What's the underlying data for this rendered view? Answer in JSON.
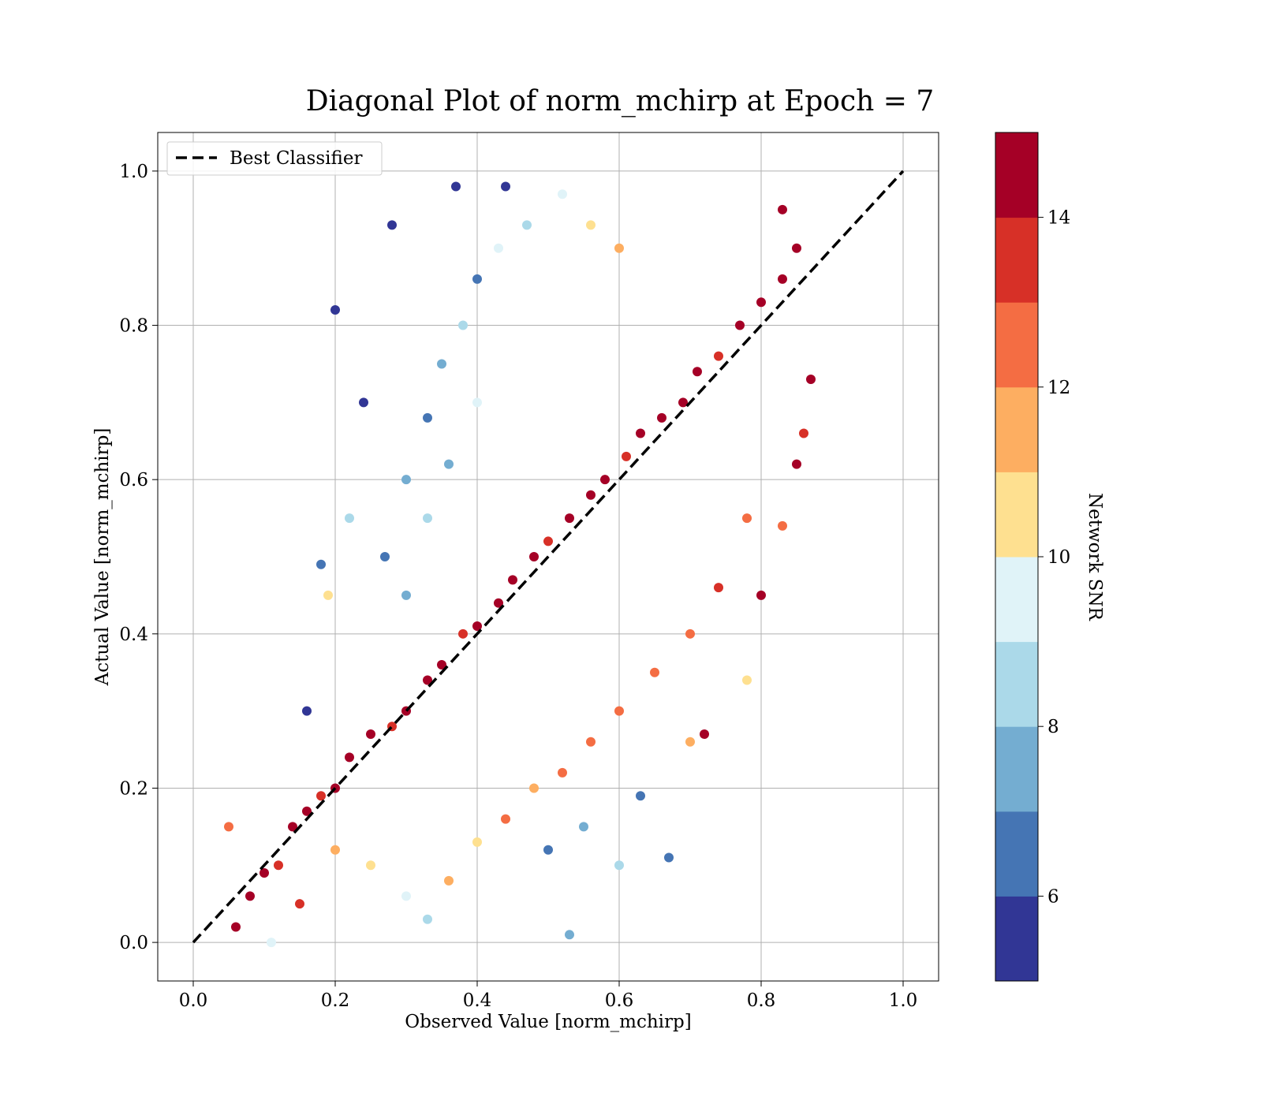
{
  "chart_data": {
    "type": "scatter",
    "title": "Diagonal Plot of norm_mchirp at Epoch = 7",
    "xlabel": "Observed Value [norm_mchirp]",
    "ylabel": "Actual Value [norm_mchirp]",
    "xlim": [
      -0.05,
      1.05
    ],
    "ylim": [
      -0.05,
      1.05
    ],
    "xticks": [
      "0.0",
      "0.2",
      "0.4",
      "0.6",
      "0.8",
      "1.0"
    ],
    "yticks": [
      "0.0",
      "0.2",
      "0.4",
      "0.6",
      "0.8",
      "1.0"
    ],
    "grid": true,
    "legend": {
      "position": "top-left",
      "entries": [
        {
          "label": "Best Classifier",
          "style": "black dashed line"
        }
      ]
    },
    "reference_line": {
      "x": [
        0.0,
        1.0
      ],
      "y": [
        0.0,
        1.0
      ],
      "color": "#000000"
    },
    "colorbar": {
      "label": "Network SNR",
      "range": [
        5,
        15
      ],
      "ticks": [
        "6",
        "8",
        "10",
        "12",
        "14"
      ],
      "bins": 10,
      "colors": [
        "#313695",
        "#4575b4",
        "#74add1",
        "#abd9e9",
        "#e0f3f8",
        "#fee090",
        "#fdae61",
        "#f46d43",
        "#d73027",
        "#a50026"
      ]
    },
    "series": [
      {
        "note": "representative sample of the scatter points (x, y, snr)",
        "points": [
          [
            0.06,
            0.02,
            14.5
          ],
          [
            0.08,
            0.06,
            14.6
          ],
          [
            0.1,
            0.09,
            14.2
          ],
          [
            0.12,
            0.1,
            13.5
          ],
          [
            0.14,
            0.15,
            14.8
          ],
          [
            0.16,
            0.17,
            14.4
          ],
          [
            0.18,
            0.19,
            13.2
          ],
          [
            0.2,
            0.2,
            14.9
          ],
          [
            0.22,
            0.24,
            14.3
          ],
          [
            0.25,
            0.27,
            14.7
          ],
          [
            0.28,
            0.28,
            13.8
          ],
          [
            0.3,
            0.3,
            14.6
          ],
          [
            0.33,
            0.34,
            14.1
          ],
          [
            0.35,
            0.36,
            14.9
          ],
          [
            0.38,
            0.4,
            13.4
          ],
          [
            0.4,
            0.41,
            14.5
          ],
          [
            0.43,
            0.44,
            14.8
          ],
          [
            0.45,
            0.47,
            14.2
          ],
          [
            0.48,
            0.5,
            14.7
          ],
          [
            0.5,
            0.52,
            13.6
          ],
          [
            0.53,
            0.55,
            14.9
          ],
          [
            0.56,
            0.58,
            14.3
          ],
          [
            0.58,
            0.6,
            14.6
          ],
          [
            0.61,
            0.63,
            13.9
          ],
          [
            0.63,
            0.66,
            14.8
          ],
          [
            0.66,
            0.68,
            14.4
          ],
          [
            0.69,
            0.7,
            14.1
          ],
          [
            0.71,
            0.74,
            14.9
          ],
          [
            0.74,
            0.76,
            13.7
          ],
          [
            0.77,
            0.8,
            14.5
          ],
          [
            0.8,
            0.83,
            14.8
          ],
          [
            0.83,
            0.86,
            14.2
          ],
          [
            0.85,
            0.9,
            14.6
          ],
          [
            0.87,
            0.73,
            14.4
          ],
          [
            0.83,
            0.95,
            14.9
          ],
          [
            0.2,
            0.12,
            11.5
          ],
          [
            0.25,
            0.1,
            10.8
          ],
          [
            0.3,
            0.06,
            9.2
          ],
          [
            0.33,
            0.03,
            8.5
          ],
          [
            0.36,
            0.08,
            11.2
          ],
          [
            0.4,
            0.13,
            10.2
          ],
          [
            0.44,
            0.16,
            12.1
          ],
          [
            0.48,
            0.2,
            11.8
          ],
          [
            0.52,
            0.22,
            12.6
          ],
          [
            0.56,
            0.26,
            12.3
          ],
          [
            0.6,
            0.3,
            12.8
          ],
          [
            0.65,
            0.35,
            12.5
          ],
          [
            0.7,
            0.4,
            12.9
          ],
          [
            0.74,
            0.46,
            13.1
          ],
          [
            0.78,
            0.55,
            12.4
          ],
          [
            0.3,
            0.6,
            7.5
          ],
          [
            0.33,
            0.68,
            6.8
          ],
          [
            0.35,
            0.75,
            7.9
          ],
          [
            0.38,
            0.8,
            8.6
          ],
          [
            0.4,
            0.86,
            6.2
          ],
          [
            0.43,
            0.9,
            9.1
          ],
          [
            0.47,
            0.93,
            8.3
          ],
          [
            0.52,
            0.97,
            9.5
          ],
          [
            0.56,
            0.93,
            10.4
          ],
          [
            0.6,
            0.9,
            11.3
          ],
          [
            0.27,
            0.5,
            6.5
          ],
          [
            0.3,
            0.45,
            7.2
          ],
          [
            0.33,
            0.55,
            8.1
          ],
          [
            0.36,
            0.62,
            7.7
          ],
          [
            0.4,
            0.7,
            9.4
          ],
          [
            0.2,
            0.82,
            5.3
          ],
          [
            0.24,
            0.7,
            5.5
          ],
          [
            0.28,
            0.93,
            5.6
          ],
          [
            0.37,
            0.98,
            5.4
          ],
          [
            0.44,
            0.98,
            5.2
          ],
          [
            0.18,
            0.49,
            6.1
          ],
          [
            0.22,
            0.55,
            8.8
          ],
          [
            0.19,
            0.45,
            10.6
          ],
          [
            0.16,
            0.3,
            5.7
          ],
          [
            0.5,
            0.12,
            6.9
          ],
          [
            0.55,
            0.15,
            7.4
          ],
          [
            0.6,
            0.1,
            8.4
          ],
          [
            0.63,
            0.19,
            6.4
          ],
          [
            0.67,
            0.11,
            6.6
          ],
          [
            0.53,
            0.01,
            7.8
          ],
          [
            0.7,
            0.26,
            11.9
          ],
          [
            0.72,
            0.27,
            14.7
          ],
          [
            0.78,
            0.34,
            10.7
          ],
          [
            0.8,
            0.45,
            14.5
          ],
          [
            0.83,
            0.54,
            12.2
          ],
          [
            0.85,
            0.62,
            14.1
          ],
          [
            0.86,
            0.66,
            13.3
          ],
          [
            0.11,
            0.0,
            9.7
          ],
          [
            0.15,
            0.05,
            13.9
          ],
          [
            0.05,
            0.15,
            12.7
          ]
        ]
      }
    ]
  }
}
